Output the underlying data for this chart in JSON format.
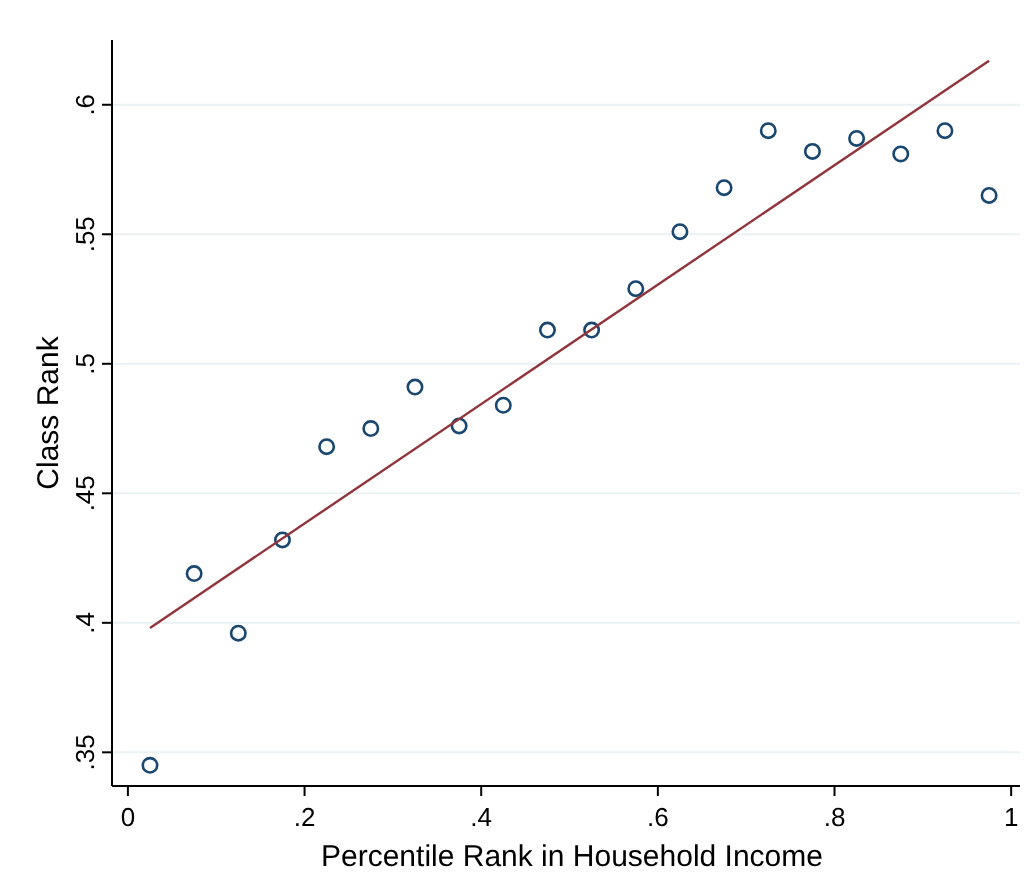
{
  "chart_data": {
    "type": "scatter",
    "xlabel": "Percentile Rank in Household Income",
    "ylabel": "Class Rank",
    "xlim": [
      -0.018,
      1.01
    ],
    "ylim": [
      0.337,
      0.625
    ],
    "xticks": [
      {
        "value": 0,
        "label": "0"
      },
      {
        "value": 0.2,
        "label": ".2"
      },
      {
        "value": 0.4,
        "label": ".4"
      },
      {
        "value": 0.6,
        "label": ".6"
      },
      {
        "value": 0.8,
        "label": ".8"
      },
      {
        "value": 1,
        "label": "1"
      }
    ],
    "yticks": [
      {
        "value": 0.35,
        "label": ".35"
      },
      {
        "value": 0.4,
        "label": ".4"
      },
      {
        "value": 0.45,
        "label": ".45"
      },
      {
        "value": 0.5,
        "label": ".5"
      },
      {
        "value": 0.55,
        "label": ".55"
      },
      {
        "value": 0.6,
        "label": ".6"
      }
    ],
    "grid": "y",
    "series": [
      {
        "color": "#1a476f",
        "marker": "circle",
        "x": [
          0.025,
          0.075,
          0.125,
          0.175,
          0.225,
          0.275,
          0.325,
          0.375,
          0.425,
          0.475,
          0.525,
          0.575,
          0.625,
          0.675,
          0.725,
          0.775,
          0.825,
          0.875,
          0.925,
          0.975
        ],
        "values": [
          0.345,
          0.419,
          0.396,
          0.432,
          0.468,
          0.475,
          0.491,
          0.476,
          0.484,
          0.513,
          0.513,
          0.529,
          0.551,
          0.568,
          0.59,
          0.582,
          0.587,
          0.581,
          0.59,
          0.565
        ]
      },
      {
        "type": "line",
        "color": "#90353b",
        "marker": "none",
        "line_style": "solid",
        "x": [
          0.025,
          0.975
        ],
        "values": [
          0.398,
          0.617
        ]
      }
    ]
  }
}
